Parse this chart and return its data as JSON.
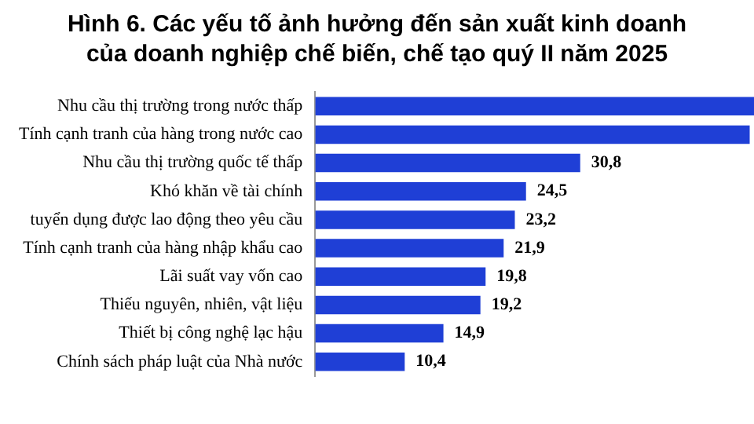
{
  "chart_data": {
    "type": "bar",
    "orientation": "horizontal",
    "title": "Hình 6. Các yếu tố ảnh hưởng đến sản xuất kinh doanh\ncủa doanh nghiệp chế biến, chế tạo quý II năm 2025",
    "categories": [
      "Nhu cầu thị trường trong nước thấp",
      "Tính cạnh tranh của hàng trong nước cao",
      "Nhu cầu thị trường quốc tế thấp",
      "Khó khăn về tài chính",
      "tuyển dụng được lao động theo yêu cầu",
      "Tính cạnh tranh của hàng nhập khẩu cao",
      "Lãi suất vay vốn cao",
      "Thiếu nguyên, nhiên, vật liệu",
      "Thiết bị công nghệ lạc hậu",
      "Chính sách pháp luật của Nhà nước"
    ],
    "values": [
      51,
      50.5,
      30.8,
      24.5,
      23.2,
      21.9,
      19.8,
      19.2,
      14.9,
      10.4
    ],
    "value_labels": [
      null,
      null,
      "30,8",
      "24,5",
      "23,2",
      "21,9",
      "19,8",
      "19,2",
      "14,9",
      "10,4"
    ],
    "color": "#1f3fd6",
    "legend": false
  }
}
